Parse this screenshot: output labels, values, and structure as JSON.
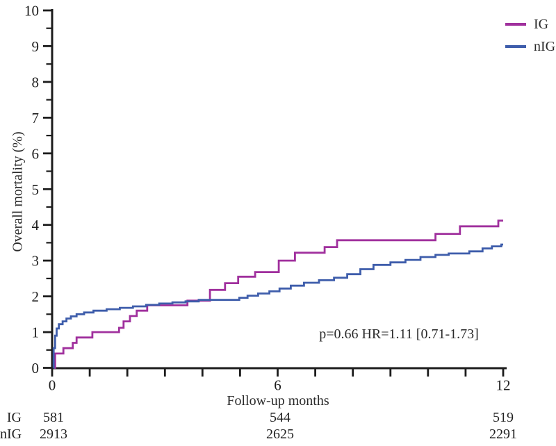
{
  "colors": {
    "axis": "#1c1c1c",
    "text": "#2a2a2a",
    "background": "#ffffff"
  },
  "chart_data": {
    "type": "line",
    "subtype": "step-survival",
    "title": "",
    "xlabel": "Follow-up months",
    "ylabel": "Overall mortality (%)",
    "xlim": [
      0,
      12
    ],
    "ylim": [
      0,
      10
    ],
    "x_minor_tick_step": 1,
    "x_labeled_ticks": [
      0,
      6,
      12
    ],
    "y_major_tick_step": 1,
    "y_minor_tick_step": 0.5,
    "grid": false,
    "legend_position": "top-right",
    "annotation": "p=0.66 HR=1.11 [0.71-1.73]",
    "series": [
      {
        "name": "IG",
        "color": "#A0309D",
        "points": [
          [
            0,
            0
          ],
          [
            0.08,
            0.4
          ],
          [
            0.3,
            0.55
          ],
          [
            0.55,
            0.7
          ],
          [
            0.65,
            0.85
          ],
          [
            1.07,
            1.0
          ],
          [
            1.78,
            1.12
          ],
          [
            1.9,
            1.3
          ],
          [
            2.07,
            1.45
          ],
          [
            2.25,
            1.6
          ],
          [
            2.53,
            1.75
          ],
          [
            3.6,
            1.88
          ],
          [
            4.2,
            2.18
          ],
          [
            4.6,
            2.37
          ],
          [
            4.95,
            2.55
          ],
          [
            5.4,
            2.68
          ],
          [
            6.03,
            3.0
          ],
          [
            6.46,
            3.22
          ],
          [
            7.25,
            3.38
          ],
          [
            7.58,
            3.57
          ],
          [
            10.2,
            3.75
          ],
          [
            10.85,
            3.96
          ],
          [
            11.87,
            4.12
          ]
        ]
      },
      {
        "name": "nIG",
        "color": "#3E5DAB",
        "points": [
          [
            0,
            0
          ],
          [
            0.04,
            0.55
          ],
          [
            0.08,
            0.9
          ],
          [
            0.12,
            1.1
          ],
          [
            0.18,
            1.22
          ],
          [
            0.28,
            1.3
          ],
          [
            0.38,
            1.38
          ],
          [
            0.5,
            1.44
          ],
          [
            0.65,
            1.5
          ],
          [
            0.85,
            1.55
          ],
          [
            1.1,
            1.6
          ],
          [
            1.45,
            1.64
          ],
          [
            1.8,
            1.68
          ],
          [
            2.15,
            1.72
          ],
          [
            2.5,
            1.76
          ],
          [
            2.85,
            1.8
          ],
          [
            3.2,
            1.83
          ],
          [
            3.55,
            1.86
          ],
          [
            3.9,
            1.9
          ],
          [
            4.98,
            1.96
          ],
          [
            5.2,
            2.02
          ],
          [
            5.48,
            2.08
          ],
          [
            5.78,
            2.14
          ],
          [
            6.05,
            2.22
          ],
          [
            6.35,
            2.3
          ],
          [
            6.7,
            2.38
          ],
          [
            7.1,
            2.45
          ],
          [
            7.5,
            2.52
          ],
          [
            7.85,
            2.62
          ],
          [
            8.2,
            2.76
          ],
          [
            8.55,
            2.88
          ],
          [
            9.0,
            2.95
          ],
          [
            9.4,
            3.02
          ],
          [
            9.8,
            3.1
          ],
          [
            10.2,
            3.16
          ],
          [
            10.55,
            3.2
          ],
          [
            11.1,
            3.26
          ],
          [
            11.45,
            3.34
          ],
          [
            11.7,
            3.4
          ],
          [
            11.95,
            3.45
          ]
        ]
      }
    ]
  },
  "risk_table": {
    "columns_months": [
      0,
      6,
      12
    ],
    "rows": [
      {
        "label": "IG",
        "values": [
          "581",
          "544",
          "519"
        ]
      },
      {
        "label": "nIG",
        "values": [
          "2913",
          "2625",
          "2291"
        ]
      }
    ]
  }
}
